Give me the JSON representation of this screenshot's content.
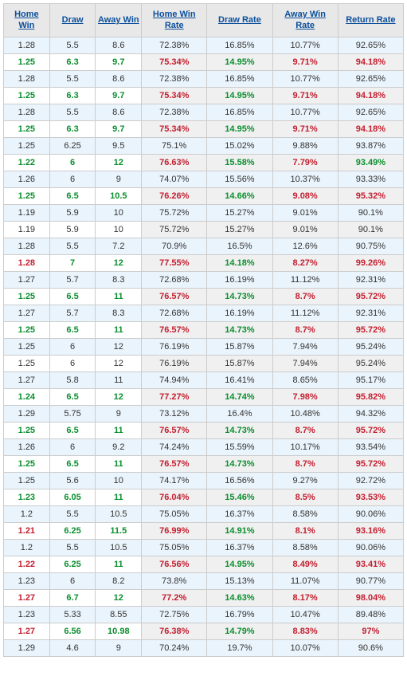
{
  "type": "table",
  "columns": [
    {
      "key": "home_win",
      "label": "Home Win",
      "group": "odds"
    },
    {
      "key": "draw",
      "label": "Draw",
      "group": "odds"
    },
    {
      "key": "away_win",
      "label": "Away Win",
      "group": "odds"
    },
    {
      "key": "home_win_rate",
      "label": "Home Win Rate",
      "group": "rates"
    },
    {
      "key": "draw_rate",
      "label": "Draw Rate",
      "group": "rates"
    },
    {
      "key": "away_win_rate",
      "label": "Away Win Rate",
      "group": "rates"
    },
    {
      "key": "return_rate",
      "label": "Return Rate",
      "group": "rates"
    }
  ],
  "styling": {
    "header_bg": "#e8e8e8",
    "header_fg": "#0b4f9c",
    "border": "#cccccc",
    "stripe_even_odds": "#eaf4fc",
    "stripe_even_rates": "#eaf4fc",
    "stripe_odd_odds": "#ffffff",
    "stripe_odd_rates": "#f0f0f0",
    "green": "#0a8f2e",
    "red": "#c41e2f",
    "text": "#333333",
    "font_size": 11,
    "header_font_size": 11
  },
  "rows": [
    {
      "hl": false,
      "home_win": "1.28",
      "draw": "5.5",
      "away_win": "8.6",
      "hw_rate": "72.38%",
      "dr_rate": "16.85%",
      "aw_rate": "10.77%",
      "rr": "92.65%"
    },
    {
      "hl": true,
      "short": true,
      "home_win": "1.25",
      "draw": "6.3",
      "away_win": "9.7",
      "hw_rate": "75.34%",
      "dr_rate": "14.95%",
      "aw_rate": "9.71%",
      "rr": "94.18%"
    },
    {
      "hl": false,
      "home_win": "1.28",
      "draw": "5.5",
      "away_win": "8.6",
      "hw_rate": "72.38%",
      "dr_rate": "16.85%",
      "aw_rate": "10.77%",
      "rr": "92.65%"
    },
    {
      "hl": true,
      "short": true,
      "home_win": "1.25",
      "draw": "6.3",
      "away_win": "9.7",
      "hw_rate": "75.34%",
      "dr_rate": "14.95%",
      "aw_rate": "9.71%",
      "rr": "94.18%"
    },
    {
      "hl": false,
      "home_win": "1.28",
      "draw": "5.5",
      "away_win": "8.6",
      "hw_rate": "72.38%",
      "dr_rate": "16.85%",
      "aw_rate": "10.77%",
      "rr": "92.65%"
    },
    {
      "hl": true,
      "short": true,
      "home_win": "1.25",
      "draw": "6.3",
      "away_win": "9.7",
      "hw_rate": "75.34%",
      "dr_rate": "14.95%",
      "aw_rate": "9.71%",
      "rr": "94.18%"
    },
    {
      "hl": false,
      "home_win": "1.25",
      "draw": "6.25",
      "away_win": "9.5",
      "hw_rate": "75.1%",
      "dr_rate": "15.02%",
      "aw_rate": "9.88%",
      "rr": "93.87%"
    },
    {
      "hl": true,
      "short": true,
      "home_win": "1.22",
      "draw": "6",
      "away_win": "12",
      "hw_rate": "76.63%",
      "dr_rate": "15.58%",
      "aw_rate": "7.79%",
      "rr": "93.49%",
      "rr_green": true
    },
    {
      "hl": false,
      "home_win": "1.26",
      "draw": "6",
      "away_win": "9",
      "hw_rate": "74.07%",
      "dr_rate": "15.56%",
      "aw_rate": "10.37%",
      "rr": "93.33%"
    },
    {
      "hl": true,
      "short": true,
      "home_win": "1.25",
      "draw": "6.5",
      "away_win": "10.5",
      "hw_rate": "76.26%",
      "dr_rate": "14.66%",
      "aw_rate": "9.08%",
      "rr": "95.32%"
    },
    {
      "hl": false,
      "home_win": "1.19",
      "draw": "5.9",
      "away_win": "10",
      "hw_rate": "75.72%",
      "dr_rate": "15.27%",
      "aw_rate": "9.01%",
      "rr": "90.1%"
    },
    {
      "hl": false,
      "home_win": "1.19",
      "draw": "5.9",
      "away_win": "10",
      "hw_rate": "75.72%",
      "dr_rate": "15.27%",
      "aw_rate": "9.01%",
      "rr": "90.1%"
    },
    {
      "hl": false,
      "home_win": "1.28",
      "draw": "5.5",
      "away_win": "7.2",
      "hw_rate": "70.9%",
      "dr_rate": "16.5%",
      "aw_rate": "12.6%",
      "rr": "90.75%"
    },
    {
      "hl": true,
      "long": true,
      "home_win": "1.28",
      "draw": "7",
      "away_win": "12",
      "hw_rate": "77.55%",
      "dr_rate": "14.18%",
      "aw_rate": "8.27%",
      "rr": "99.26%"
    },
    {
      "hl": false,
      "home_win": "1.27",
      "draw": "5.7",
      "away_win": "8.3",
      "hw_rate": "72.68%",
      "dr_rate": "16.19%",
      "aw_rate": "11.12%",
      "rr": "92.31%"
    },
    {
      "hl": true,
      "short": true,
      "home_win": "1.25",
      "draw": "6.5",
      "away_win": "11",
      "hw_rate": "76.57%",
      "dr_rate": "14.73%",
      "aw_rate": "8.7%",
      "rr": "95.72%"
    },
    {
      "hl": false,
      "home_win": "1.27",
      "draw": "5.7",
      "away_win": "8.3",
      "hw_rate": "72.68%",
      "dr_rate": "16.19%",
      "aw_rate": "11.12%",
      "rr": "92.31%"
    },
    {
      "hl": true,
      "short": true,
      "home_win": "1.25",
      "draw": "6.5",
      "away_win": "11",
      "hw_rate": "76.57%",
      "dr_rate": "14.73%",
      "aw_rate": "8.7%",
      "rr": "95.72%"
    },
    {
      "hl": false,
      "home_win": "1.25",
      "draw": "6",
      "away_win": "12",
      "hw_rate": "76.19%",
      "dr_rate": "15.87%",
      "aw_rate": "7.94%",
      "rr": "95.24%"
    },
    {
      "hl": false,
      "home_win": "1.25",
      "draw": "6",
      "away_win": "12",
      "hw_rate": "76.19%",
      "dr_rate": "15.87%",
      "aw_rate": "7.94%",
      "rr": "95.24%"
    },
    {
      "hl": false,
      "home_win": "1.27",
      "draw": "5.8",
      "away_win": "11",
      "hw_rate": "74.94%",
      "dr_rate": "16.41%",
      "aw_rate": "8.65%",
      "rr": "95.17%"
    },
    {
      "hl": true,
      "short": true,
      "home_win": "1.24",
      "draw": "6.5",
      "away_win": "12",
      "hw_rate": "77.27%",
      "dr_rate": "14.74%",
      "aw_rate": "7.98%",
      "rr": "95.82%"
    },
    {
      "hl": false,
      "home_win": "1.29",
      "draw": "5.75",
      "away_win": "9",
      "hw_rate": "73.12%",
      "dr_rate": "16.4%",
      "aw_rate": "10.48%",
      "rr": "94.32%"
    },
    {
      "hl": true,
      "short": true,
      "home_win": "1.25",
      "draw": "6.5",
      "away_win": "11",
      "hw_rate": "76.57%",
      "dr_rate": "14.73%",
      "aw_rate": "8.7%",
      "rr": "95.72%"
    },
    {
      "hl": false,
      "home_win": "1.26",
      "draw": "6",
      "away_win": "9.2",
      "hw_rate": "74.24%",
      "dr_rate": "15.59%",
      "aw_rate": "10.17%",
      "rr": "93.54%"
    },
    {
      "hl": true,
      "short": true,
      "home_win": "1.25",
      "draw": "6.5",
      "away_win": "11",
      "hw_rate": "76.57%",
      "dr_rate": "14.73%",
      "aw_rate": "8.7%",
      "rr": "95.72%"
    },
    {
      "hl": false,
      "home_win": "1.25",
      "draw": "5.6",
      "away_win": "10",
      "hw_rate": "74.17%",
      "dr_rate": "16.56%",
      "aw_rate": "9.27%",
      "rr": "92.72%"
    },
    {
      "hl": true,
      "short": true,
      "home_win": "1.23",
      "draw": "6.05",
      "away_win": "11",
      "hw_rate": "76.04%",
      "dr_rate": "15.46%",
      "aw_rate": "8.5%",
      "rr": "93.53%"
    },
    {
      "hl": false,
      "home_win": "1.2",
      "draw": "5.5",
      "away_win": "10.5",
      "hw_rate": "75.05%",
      "dr_rate": "16.37%",
      "aw_rate": "8.58%",
      "rr": "90.06%"
    },
    {
      "hl": true,
      "long": true,
      "home_win": "1.21",
      "draw": "6.25",
      "away_win": "11.5",
      "hw_rate": "76.99%",
      "dr_rate": "14.91%",
      "aw_rate": "8.1%",
      "rr": "93.16%"
    },
    {
      "hl": false,
      "home_win": "1.2",
      "draw": "5.5",
      "away_win": "10.5",
      "hw_rate": "75.05%",
      "dr_rate": "16.37%",
      "aw_rate": "8.58%",
      "rr": "90.06%"
    },
    {
      "hl": true,
      "long": true,
      "home_win": "1.22",
      "draw": "6.25",
      "away_win": "11",
      "hw_rate": "76.56%",
      "dr_rate": "14.95%",
      "aw_rate": "8.49%",
      "rr": "93.41%"
    },
    {
      "hl": false,
      "home_win": "1.23",
      "draw": "6",
      "away_win": "8.2",
      "hw_rate": "73.8%",
      "dr_rate": "15.13%",
      "aw_rate": "11.07%",
      "rr": "90.77%"
    },
    {
      "hl": true,
      "long": true,
      "home_win": "1.27",
      "draw": "6.7",
      "away_win": "12",
      "hw_rate": "77.2%",
      "dr_rate": "14.63%",
      "aw_rate": "8.17%",
      "rr": "98.04%"
    },
    {
      "hl": false,
      "home_win": "1.23",
      "draw": "5.33",
      "away_win": "8.55",
      "hw_rate": "72.75%",
      "dr_rate": "16.79%",
      "aw_rate": "10.47%",
      "rr": "89.48%"
    },
    {
      "hl": true,
      "long": true,
      "home_win": "1.27",
      "draw": "6.56",
      "away_win": "10.98",
      "hw_rate": "76.38%",
      "dr_rate": "14.79%",
      "aw_rate": "8.83%",
      "rr": "97%"
    },
    {
      "hl": false,
      "home_win": "1.29",
      "draw": "4.6",
      "away_win": "9",
      "hw_rate": "70.24%",
      "dr_rate": "19.7%",
      "aw_rate": "10.07%",
      "rr": "90.6%"
    }
  ]
}
